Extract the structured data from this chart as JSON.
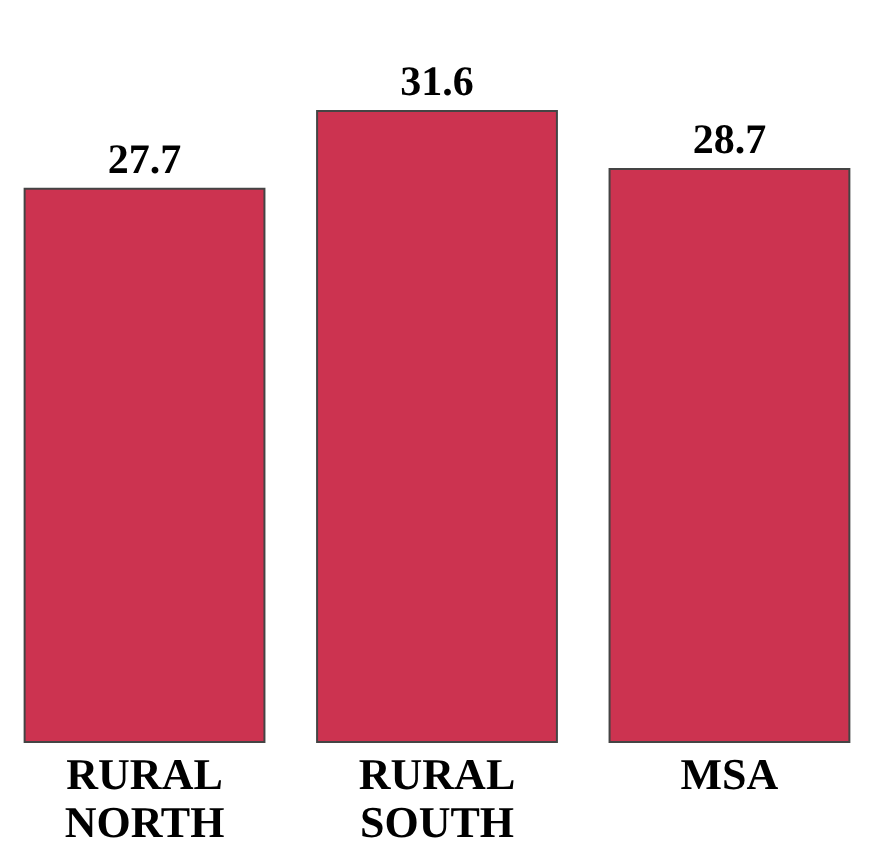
{
  "chart_data": {
    "type": "bar",
    "categories": [
      "RURAL NORTH",
      "RURAL SOUTH",
      "MSA"
    ],
    "values": [
      27.7,
      31.6,
      28.7
    ],
    "color": "#cc3350",
    "data_labels": true
  }
}
